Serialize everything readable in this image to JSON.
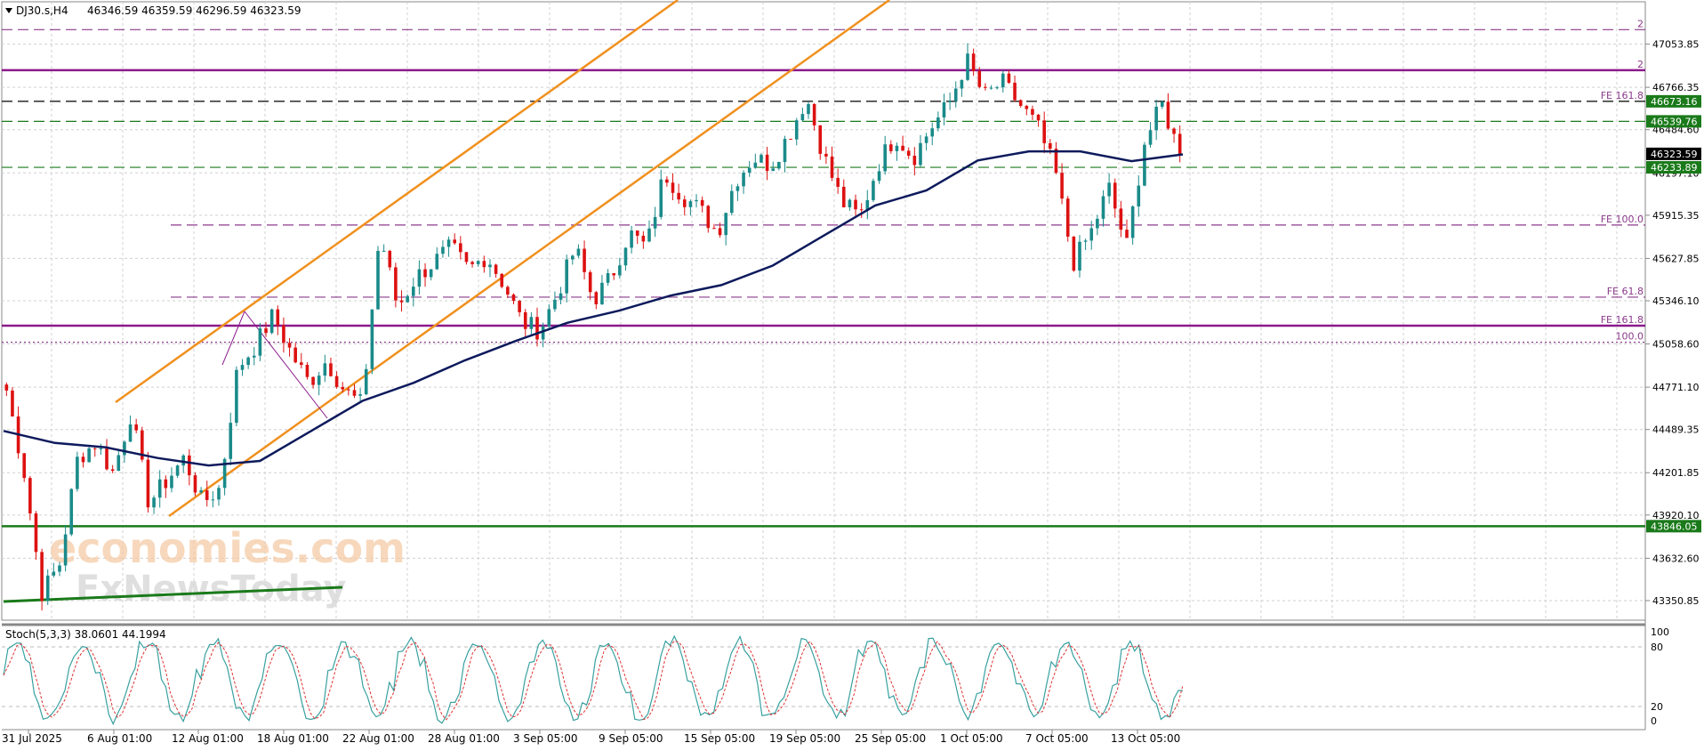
{
  "header": {
    "symbol_label": "DJ30.s,H4",
    "ohlc": "46346.59 46359.59 46296.59 46323.59"
  },
  "indicator": {
    "label": "Stoch(5,3,3) 38.0601 44.1994",
    "levels": [
      "100",
      "80",
      "20",
      "0"
    ]
  },
  "price_axis_labels": [
    "47053.85",
    "46766.35",
    "46484.60",
    "46197.10",
    "45915.35",
    "45627.85",
    "45346.10",
    "45058.60",
    "44771.10",
    "44489.35",
    "44201.85",
    "43920.10",
    "43632.60",
    "43350.85"
  ],
  "price_tags": [
    {
      "text": "46673.16",
      "color": "#1a7a1a"
    },
    {
      "text": "46539.76",
      "color": "#1a7a1a"
    },
    {
      "text": "46323.59",
      "color": "#000000"
    },
    {
      "text": "46233.89",
      "color": "#1a7a1a"
    },
    {
      "text": "43846.05",
      "color": "#1a7a1a"
    }
  ],
  "level_labels": [
    {
      "text": "2",
      "color": "#8b3a8b"
    },
    {
      "text": "2",
      "color": "#8b3a8b"
    },
    {
      "text": "FE 161.8",
      "color": "#8b3a8b"
    },
    {
      "text": "FE 100.0",
      "color": "#8b3a8b"
    },
    {
      "text": "FE 61.8",
      "color": "#8b3a8b"
    },
    {
      "text": "FE 161.8",
      "color": "#8b3a8b"
    },
    {
      "text": "100.0",
      "color": "#8b3a8b"
    }
  ],
  "time_axis_labels": [
    "31 Jul 2025",
    "6 Aug 01:00",
    "12 Aug 01:00",
    "18 Aug 01:00",
    "22 Aug 01:00",
    "28 Aug 01:00",
    "3 Sep 05:00",
    "9 Sep 05:00",
    "15 Sep 05:00",
    "19 Sep 05:00",
    "25 Sep 05:00",
    "1 Oct 05:00",
    "7 Oct 05:00",
    "13 Oct 05:00"
  ],
  "watermark": {
    "line1": "economies.com",
    "line2": "FxNewsToday"
  },
  "colors": {
    "bull": "#1a8a8a",
    "bear": "#dd1111",
    "ma": "#0d1a5c",
    "channel": "#f0901e",
    "purple": "#8b1a8b",
    "green": "#1a7a1a",
    "stoch_main": "#3aa0a0",
    "stoch_signal": "#dd3333"
  },
  "chart_data": {
    "type": "candlestick",
    "symbol": "DJ30.s",
    "timeframe": "H4",
    "ylim": [
      43250,
      47300
    ],
    "time_labels": [
      "31 Jul 2025",
      "6 Aug 01:00",
      "12 Aug 01:00",
      "18 Aug 01:00",
      "22 Aug 01:00",
      "28 Aug 01:00",
      "3 Sep 05:00",
      "9 Sep 05:00",
      "15 Sep 05:00",
      "19 Sep 05:00",
      "25 Sep 05:00",
      "1 Oct 05:00",
      "7 Oct 05:00",
      "13 Oct 05:00"
    ],
    "close_path": [
      44750,
      44200,
      43400,
      43600,
      44300,
      44400,
      44200,
      44600,
      44000,
      44150,
      44300,
      44000,
      44100,
      44900,
      45050,
      45250,
      45000,
      44800,
      44950,
      44750,
      44650,
      45800,
      45300,
      45500,
      45600,
      45700,
      45550,
      45650,
      45450,
      45200,
      45150,
      45400,
      45700,
      45350,
      45500,
      45800,
      45700,
      46200,
      46050,
      45950,
      45800,
      46150,
      46300,
      46250,
      46450,
      46700,
      46300,
      46000,
      45900,
      46250,
      46450,
      46300,
      46500,
      46650,
      46950,
      46700,
      46800,
      46650,
      46500,
      46200,
      45600,
      45800,
      46100,
      45700,
      46400,
      46650,
      46323.59
    ],
    "moving_average": [
      44480,
      44400,
      44370,
      44300,
      44250,
      44280,
      44480,
      44680,
      44800,
      44950,
      45080,
      45200,
      45280,
      45380,
      45450,
      45580,
      45780,
      45980,
      46080,
      46280,
      46340,
      46340,
      46275,
      46320
    ],
    "horizontal_levels": [
      {
        "price": 47150,
        "style": "dashed",
        "color": "#8b3a8b",
        "label": "2"
      },
      {
        "price": 46880,
        "style": "solid",
        "color": "#8b1a8b",
        "label": "2"
      },
      {
        "price": 46673.16,
        "style": "dashed",
        "color": "#000000",
        "label": "FE 161.8"
      },
      {
        "price": 46539.76,
        "style": "dashed",
        "color": "#1a7a1a",
        "label": ""
      },
      {
        "price": 46233.89,
        "style": "dashed",
        "color": "#1a7a1a",
        "label": ""
      },
      {
        "price": 45850,
        "style": "dashed",
        "color": "#8b3a8b",
        "label": "FE 100.0"
      },
      {
        "price": 45370,
        "style": "dashed",
        "color": "#8b3a8b",
        "label": "FE 61.8"
      },
      {
        "price": 45180,
        "style": "solid",
        "color": "#8b1a8b",
        "label": "FE 161.8"
      },
      {
        "price": 45070,
        "style": "dotted",
        "color": "#8b3a8b",
        "label": "100.0"
      },
      {
        "price": 43846.05,
        "style": "solid",
        "color": "#1a7a1a",
        "label": ""
      }
    ],
    "last_price": 46323.59,
    "stochastic": {
      "params": "5,3,3",
      "main": 38.0601,
      "signal": 44.1994,
      "levels": [
        0,
        20,
        80,
        100
      ]
    }
  }
}
